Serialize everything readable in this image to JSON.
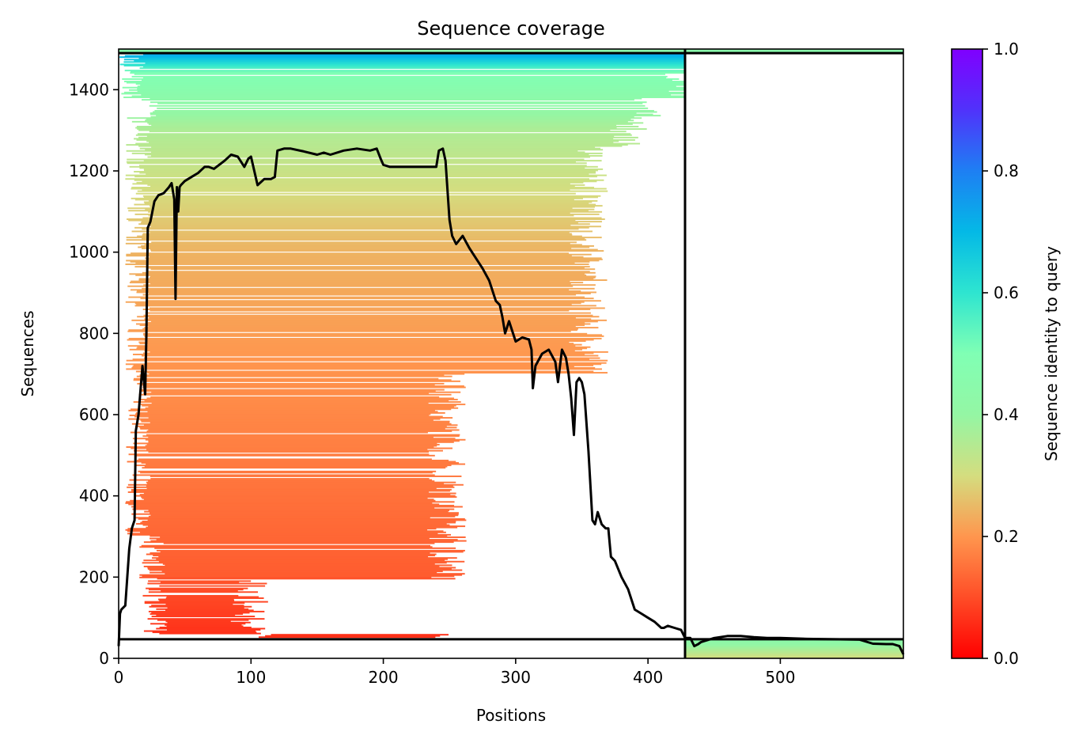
{
  "chart_data": {
    "type": "heatmap",
    "title": "Sequence coverage",
    "xlabel": "Positions",
    "ylabel": "Sequences",
    "xlim": [
      0,
      593
    ],
    "ylim": [
      0,
      1500
    ],
    "xticks": [
      0,
      100,
      200,
      300,
      400,
      500
    ],
    "yticks": [
      0,
      200,
      400,
      600,
      800,
      1000,
      1200,
      1400
    ],
    "grid": false,
    "colorbar": {
      "label": "Sequence identity to query",
      "colormap": "rainbow_r",
      "range": [
        0.0,
        1.0
      ],
      "ticks": [
        "0.0",
        "0.2",
        "0.4",
        "0.6",
        "0.8",
        "1.0"
      ]
    },
    "separators": {
      "vertical_x": 428,
      "horizontal_y": [
        47,
        1490
      ]
    },
    "coverage_line": {
      "color": "#000000",
      "x": [
        0,
        1,
        2,
        5,
        8,
        10,
        12,
        13,
        15,
        18,
        20,
        21,
        22,
        24,
        27,
        30,
        34,
        38,
        40,
        42,
        43,
        44,
        45,
        46,
        47,
        50,
        55,
        60,
        65,
        68,
        72,
        80,
        85,
        90,
        95,
        98,
        100,
        105,
        110,
        115,
        118,
        120,
        125,
        130,
        140,
        150,
        155,
        160,
        170,
        180,
        190,
        195,
        198,
        200,
        205,
        210,
        220,
        230,
        235,
        240,
        242,
        245,
        247,
        250,
        252,
        255,
        260,
        265,
        270,
        275,
        280,
        285,
        288,
        290,
        292,
        295,
        300,
        305,
        310,
        312,
        313,
        315,
        320,
        325,
        330,
        332,
        335,
        338,
        340,
        342,
        344,
        346,
        348,
        350,
        352,
        355,
        358,
        360,
        362,
        365,
        368,
        370,
        372,
        375,
        380,
        385,
        390,
        395,
        400,
        405,
        410,
        412,
        415,
        420,
        425,
        428,
        432,
        435,
        438,
        440,
        445,
        450,
        460,
        470,
        480,
        490,
        500,
        520,
        540,
        560,
        570,
        580,
        585,
        590,
        593
      ],
      "y": [
        30,
        110,
        120,
        130,
        270,
        320,
        340,
        560,
        600,
        720,
        650,
        800,
        1060,
        1075,
        1125,
        1140,
        1145,
        1160,
        1170,
        1130,
        885,
        1160,
        1100,
        1160,
        1165,
        1175,
        1185,
        1195,
        1210,
        1210,
        1205,
        1225,
        1240,
        1235,
        1210,
        1230,
        1235,
        1165,
        1180,
        1180,
        1185,
        1250,
        1255,
        1255,
        1248,
        1240,
        1245,
        1240,
        1250,
        1255,
        1250,
        1255,
        1230,
        1215,
        1210,
        1210,
        1210,
        1210,
        1210,
        1210,
        1250,
        1255,
        1225,
        1080,
        1040,
        1020,
        1040,
        1010,
        985,
        960,
        930,
        880,
        870,
        840,
        800,
        830,
        780,
        790,
        785,
        760,
        665,
        720,
        750,
        760,
        730,
        680,
        760,
        740,
        700,
        640,
        550,
        680,
        690,
        680,
        650,
        510,
        340,
        330,
        360,
        330,
        320,
        320,
        250,
        240,
        200,
        170,
        120,
        110,
        100,
        90,
        75,
        75,
        80,
        75,
        70,
        50,
        50,
        30,
        35,
        40,
        45,
        50,
        55,
        55,
        52,
        50,
        50,
        48,
        47,
        46,
        36,
        35,
        35,
        30,
        10
      ]
    }
  }
}
